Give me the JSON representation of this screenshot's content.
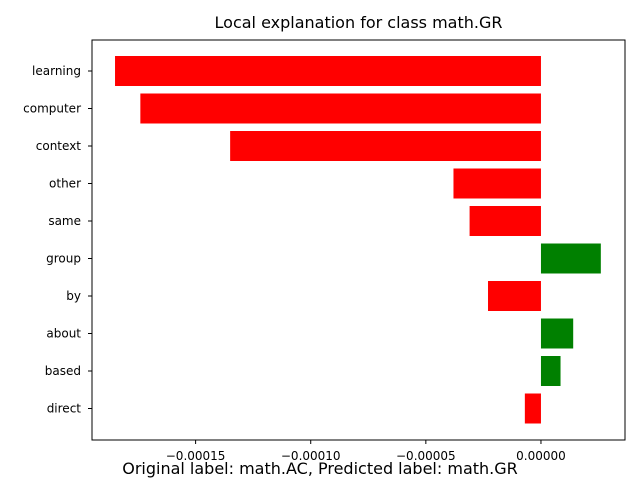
{
  "chart_data": {
    "type": "bar",
    "orientation": "horizontal",
    "title": "Local explanation for class math.GR",
    "xlabel": "",
    "ylabel": "",
    "categories": [
      "learning",
      "computer",
      "context",
      "other",
      "same",
      "group",
      "by",
      "about",
      "based",
      "direct"
    ],
    "values": [
      -0.000185,
      -0.000174,
      -0.000135,
      -3.8e-05,
      -3.1e-05,
      2.6e-05,
      -2.3e-05,
      1.4e-05,
      8.5e-06,
      -7e-06
    ],
    "xlim": [
      -0.000195,
      3.65e-05
    ],
    "xticks": [
      -0.00015,
      -0.0001,
      -5e-05,
      0.0
    ],
    "xtick_labels": [
      "−0.00015",
      "−0.00010",
      "−0.00005",
      "0.00000"
    ],
    "grid": false,
    "colors": {
      "positive": "#008000",
      "negative": "#ff0000"
    }
  },
  "caption": "Original label: math.AC, Predicted label: math.GR"
}
